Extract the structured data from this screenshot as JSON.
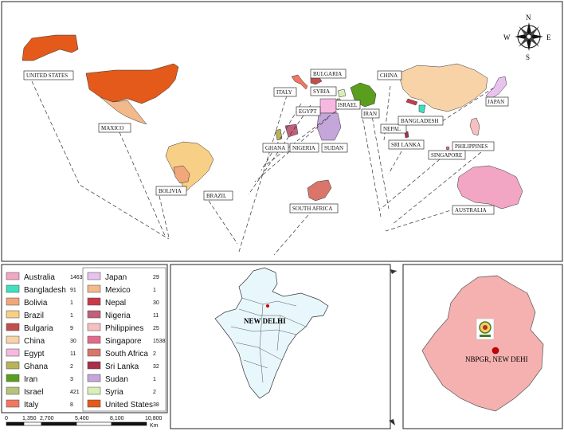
{
  "map": {
    "compass": {
      "n": "N",
      "s": "S",
      "e": "E",
      "w": "W"
    },
    "labels": [
      {
        "key": "us",
        "text": "UNITED STATES"
      },
      {
        "key": "mexico",
        "text": "MAXICO"
      },
      {
        "key": "bolivia",
        "text": "BOLIVIA"
      },
      {
        "key": "brazil",
        "text": "BRAZIL"
      },
      {
        "key": "italy",
        "text": "ITALY"
      },
      {
        "key": "bulgaria",
        "text": "BULGARIA"
      },
      {
        "key": "syria",
        "text": "SYRIA"
      },
      {
        "key": "egypt",
        "text": "EGYPT"
      },
      {
        "key": "israel",
        "text": "ISRAEL"
      },
      {
        "key": "iran",
        "text": "IRAN"
      },
      {
        "key": "china",
        "text": "CHINA"
      },
      {
        "key": "nepal",
        "text": "NEPAL"
      },
      {
        "key": "bangladesh",
        "text": "BANGLADESH"
      },
      {
        "key": "japan",
        "text": "JAPAN"
      },
      {
        "key": "ghana",
        "text": "GHANA"
      },
      {
        "key": "nigeria",
        "text": "NIGERIA"
      },
      {
        "key": "sudan",
        "text": "SUDAN"
      },
      {
        "key": "srilanka",
        "text": "SRI LANKA"
      },
      {
        "key": "philippines",
        "text": "PHILIPPINES"
      },
      {
        "key": "singapore",
        "text": "SINGAPORE"
      },
      {
        "key": "southafrica",
        "text": "SOUTH AFRICA"
      },
      {
        "key": "australia",
        "text": "AUSTRALIA"
      }
    ],
    "india_label": "NEW DELHI",
    "delhi_label": "NBPGR, NEW DEHI"
  },
  "legend": {
    "left": [
      {
        "name": "Australia",
        "count": "1463",
        "color": "#f3a6c4"
      },
      {
        "name": "Bangladesh",
        "count": "91",
        "color": "#3fe0c0"
      },
      {
        "name": "Bolivia",
        "count": "1",
        "color": "#f2a77a"
      },
      {
        "name": "Brazil",
        "count": "1",
        "color": "#f7cf86"
      },
      {
        "name": "Bulgaria",
        "count": "9",
        "color": "#c0504d"
      },
      {
        "name": "China",
        "count": "30",
        "color": "#f8d3a8"
      },
      {
        "name": "Egypt",
        "count": "11",
        "color": "#f7b8e0"
      },
      {
        "name": "Ghana",
        "count": "2",
        "color": "#b7b35a"
      },
      {
        "name": "Iran",
        "count": "3",
        "color": "#5a9e1e"
      },
      {
        "name": "Israel",
        "count": "421",
        "color": "#b5c47a"
      },
      {
        "name": "Italy",
        "count": "8",
        "color": "#f07860"
      }
    ],
    "right": [
      {
        "name": "Japan",
        "count": "29",
        "color": "#e7c3ee"
      },
      {
        "name": "Mexico",
        "count": "1",
        "color": "#f2b98a"
      },
      {
        "name": "Nepal",
        "count": "30",
        "color": "#c83a4a"
      },
      {
        "name": "Nigeria",
        "count": "11",
        "color": "#c0607a"
      },
      {
        "name": "Philippines",
        "count": "25",
        "color": "#f6c0c0"
      },
      {
        "name": "Singapore",
        "count": "1538",
        "color": "#e36a8a"
      },
      {
        "name": "South Africa",
        "count": "2",
        "color": "#d9756a"
      },
      {
        "name": "Sri Lanka",
        "count": "32",
        "color": "#a83048"
      },
      {
        "name": "Sudan",
        "count": "1",
        "color": "#c4a6da"
      },
      {
        "name": "Syria",
        "count": "2",
        "color": "#d8f0b8"
      },
      {
        "name": "United States",
        "count": "38",
        "color": "#e35a1a"
      }
    ]
  },
  "scale": {
    "ticks": [
      "0",
      "1,350",
      "2,700",
      "5,400",
      "8,100",
      "10,800"
    ],
    "unit": "Km"
  }
}
